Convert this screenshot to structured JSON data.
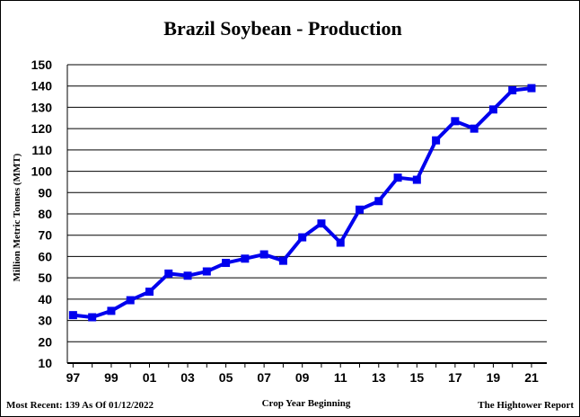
{
  "chart_data": {
    "type": "line",
    "title": "Brazil Soybean - Production",
    "xlabel": "Crop Year Beginning",
    "ylabel": "Million Metric Tonnes (MMT)",
    "ylim": [
      10,
      150
    ],
    "yticks": [
      "150",
      "140",
      "130",
      "120",
      "110",
      "100",
      "90",
      "80",
      "70",
      "60",
      "50",
      "40",
      "30",
      "20",
      "10"
    ],
    "xtick_labels": [
      "97",
      "99",
      "01",
      "03",
      "05",
      "07",
      "09",
      "11",
      "13",
      "15",
      "17",
      "19",
      "21"
    ],
    "grid": true,
    "x": [
      1997,
      1998,
      1999,
      2000,
      2001,
      2002,
      2003,
      2004,
      2005,
      2006,
      2007,
      2008,
      2009,
      2010,
      2011,
      2012,
      2013,
      2014,
      2015,
      2016,
      2017,
      2018,
      2019,
      2020,
      2021
    ],
    "series": [
      {
        "values": [
          32.5,
          31.5,
          34.5,
          39.5,
          43.5,
          52,
          51,
          53,
          57,
          59,
          61,
          58,
          69,
          75.5,
          66.5,
          82,
          86,
          97,
          96,
          114.5,
          123.5,
          120,
          129,
          138,
          139
        ],
        "color": "#0000ee"
      }
    ],
    "annotations": {
      "most_recent": "Most Recent: 139 As Of 01/12/2022",
      "source": "The Hightower Report"
    }
  }
}
